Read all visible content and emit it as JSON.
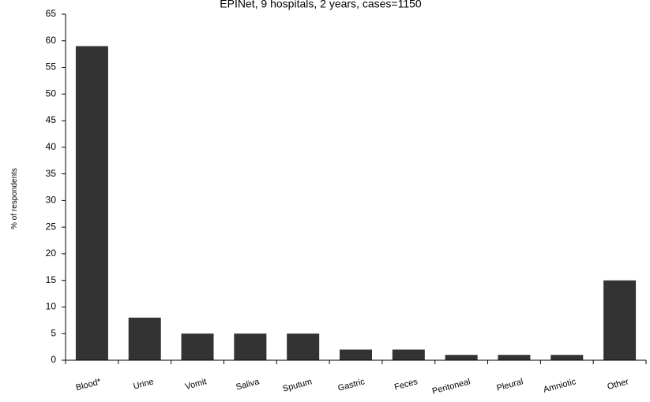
{
  "chart_data": {
    "type": "bar",
    "title": "EPINet, 9 hospitals, 2 years,  cases=1150",
    "xlabel": "",
    "ylabel": "% of respondents",
    "categories": [
      "Blood*",
      "Urine",
      "Vomit",
      "Saliva",
      "Sputum",
      "Gastric",
      "Feces",
      "Peritoneal",
      "Pleural",
      "Amniotic",
      "Other"
    ],
    "values": [
      59,
      8,
      5,
      5,
      5,
      2,
      2,
      1,
      1,
      1,
      15
    ],
    "ylim": [
      0,
      65
    ],
    "yticks": [
      "0",
      "5",
      "10",
      "15",
      "20",
      "25",
      "30",
      "35",
      "40",
      "45",
      "50",
      "55",
      "60",
      "65"
    ],
    "grid": false,
    "bar_color": "#333333"
  }
}
